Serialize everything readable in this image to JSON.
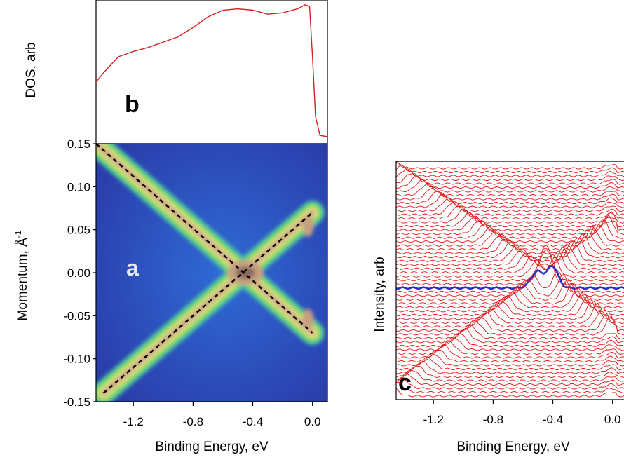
{
  "panel_a": {
    "label": "a",
    "ylabel": "Momentum, Å",
    "ylabel_sup": "-1",
    "xlabel": "Binding Energy, eV"
  },
  "panel_b": {
    "label": "b",
    "ylabel": "DOS, arb"
  },
  "panel_c": {
    "label": "c",
    "ylabel": "Intensity, arb",
    "xlabel": "Binding Energy, eV"
  },
  "colors": {
    "dos_line": "#d42020",
    "edc_lines": "#e01818",
    "highlight_edc": "#2030c8",
    "guide_lines": "#000000",
    "colormap": [
      "#2a3aa8",
      "#2f6bd6",
      "#30a8e0",
      "#46c8a0",
      "#8ad84a",
      "#e8e890",
      "#c8a080",
      "#8a6a60"
    ]
  },
  "chart_data": [
    {
      "panel": "b",
      "type": "line",
      "ylabel": "DOS, arb",
      "xlim": [
        -1.45,
        0.1
      ],
      "ylim": [
        0,
        1
      ],
      "series": [
        {
          "x": [
            -1.45,
            -1.4,
            -1.3,
            -1.2,
            -1.1,
            -1.0,
            -0.9,
            -0.8,
            -0.7,
            -0.6,
            -0.5,
            -0.4,
            -0.3,
            -0.2,
            -0.1,
            -0.05,
            -0.02,
            0.0,
            0.02,
            0.05,
            0.1
          ],
          "y": [
            0.41,
            0.48,
            0.6,
            0.64,
            0.67,
            0.71,
            0.75,
            0.82,
            0.9,
            0.95,
            0.96,
            0.95,
            0.92,
            0.93,
            0.96,
            0.99,
            0.98,
            0.6,
            0.15,
            0.01,
            0.0
          ]
        }
      ]
    },
    {
      "panel": "a",
      "type": "heatmap",
      "xlabel": "Binding Energy, eV",
      "ylabel": "Momentum, Å-1",
      "xlim": [
        -1.45,
        0.1
      ],
      "ylim": [
        -0.15,
        0.15
      ],
      "xticks": [
        "-1.2",
        "-0.8",
        "-0.4",
        "0.0"
      ],
      "yticks": [
        "0.15",
        "0.10",
        "0.05",
        "0.00",
        "-0.05",
        "-0.10",
        "-0.15"
      ],
      "dirac_point": {
        "x": -0.45,
        "y": 0.0
      },
      "guide_lines": [
        {
          "x": [
            -1.45,
            0.0
          ],
          "y": [
            0.15,
            -0.07
          ]
        },
        {
          "x": [
            -1.4,
            0.0
          ],
          "y": [
            -0.14,
            0.07
          ]
        }
      ]
    },
    {
      "panel": "c",
      "type": "line",
      "xlabel": "Binding Energy, eV",
      "ylabel": "Intensity, arb",
      "xlim": [
        -1.45,
        0.1
      ],
      "xticks": [
        "-1.2",
        "-0.8",
        "-0.4",
        "0.0"
      ],
      "n_curves": 60,
      "highlighted_curve": "k = 0"
    }
  ]
}
